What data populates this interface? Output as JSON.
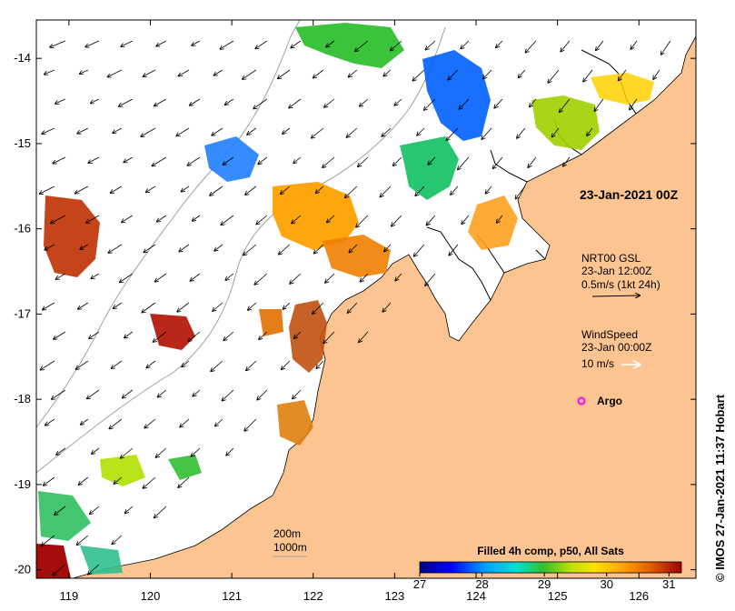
{
  "map": {
    "lon_ticks": [
      "119",
      "120",
      "121",
      "122",
      "123",
      "124",
      "125",
      "126"
    ],
    "lat_ticks": [
      "-14",
      "-15",
      "-16",
      "-17",
      "-18",
      "-19",
      "-20"
    ],
    "lon_range": [
      118.6,
      126.7
    ],
    "lat_range": [
      -20.1,
      -13.55
    ]
  },
  "annotations": {
    "composite_time": "23-Jan-2021 00Z",
    "current_title": "NRT00 GSL",
    "current_time": "23-Jan 12:00Z",
    "current_scale": "0.5m/s (1kt 24h)",
    "wind_title": "WindSpeed",
    "wind_time": "23-Jan 00:00Z",
    "wind_scale": "10 m/s",
    "argo_label": "Argo",
    "contour_200": "200m",
    "contour_1000": "1000m"
  },
  "colorbar": {
    "title": "Filled 4h comp, p50, All Sats",
    "ticks": [
      "27",
      "28",
      "29",
      "30",
      "31"
    ],
    "range": [
      27,
      31.2
    ],
    "stops": [
      "#000080",
      "#0000ff",
      "#00a0ff",
      "#00e0d0",
      "#30c030",
      "#c0e000",
      "#ffe000",
      "#ffa000",
      "#e06000",
      "#a00000"
    ]
  },
  "credit": "© IMOS 27-Jan-2021 11:37 Hobart",
  "colors": {
    "land": "#fbc491",
    "argo": "#ff00ff",
    "coast": "#000000",
    "isobath": "#a0a0a0"
  }
}
